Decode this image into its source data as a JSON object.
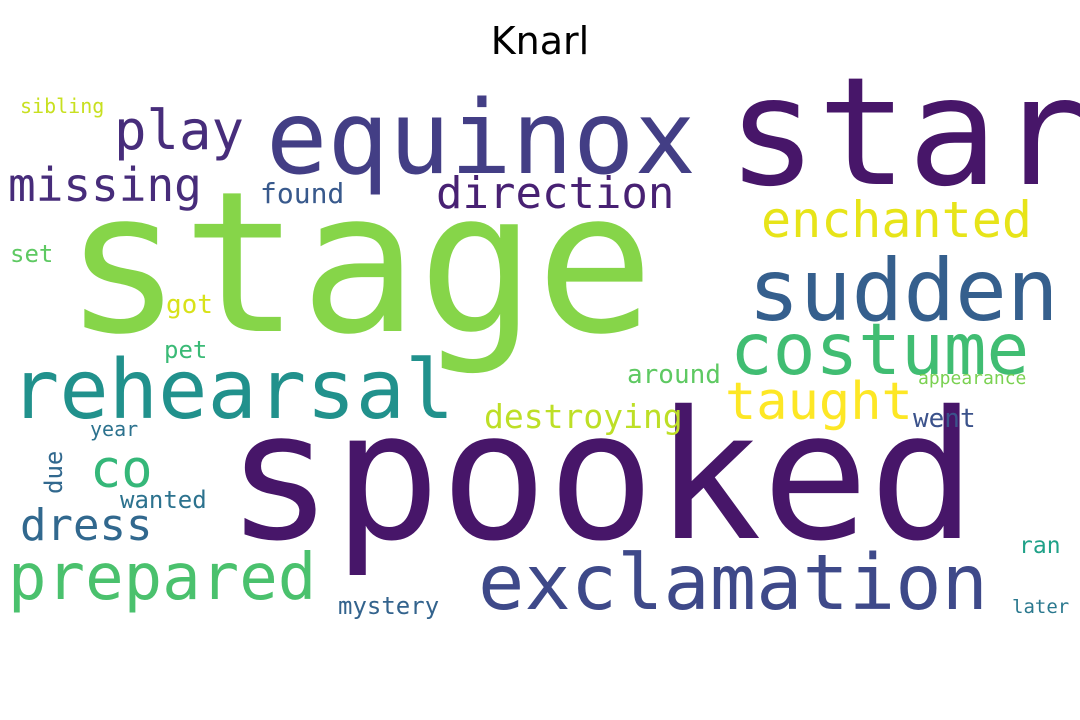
{
  "title": "Knarl",
  "colors": {
    "background": "#ffffff",
    "title": "#000000"
  },
  "words": [
    {
      "text": "stage",
      "color": "#86d549"
    },
    {
      "text": "spooked",
      "color": "#471669"
    },
    {
      "text": "star",
      "color": "#471669"
    },
    {
      "text": "equinox",
      "color": "#433e85"
    },
    {
      "text": "rehearsal",
      "color": "#21918c"
    },
    {
      "text": "exclamation",
      "color": "#3e4989"
    },
    {
      "text": "sudden",
      "color": "#355f8d"
    },
    {
      "text": "costume",
      "color": "#40bd72"
    },
    {
      "text": "prepared",
      "color": "#4ac16d"
    },
    {
      "text": "play",
      "color": "#472d7b"
    },
    {
      "text": "missing",
      "color": "#472c7a"
    },
    {
      "text": "direction",
      "color": "#482173"
    },
    {
      "text": "enchanted",
      "color": "#e7e419"
    },
    {
      "text": "taught",
      "color": "#fde725"
    },
    {
      "text": "co",
      "color": "#35b779"
    },
    {
      "text": "dress",
      "color": "#31688e"
    },
    {
      "text": "destroying",
      "color": "#bddf26"
    },
    {
      "text": "found",
      "color": "#38598c"
    },
    {
      "text": "got",
      "color": "#d8e219"
    },
    {
      "text": "pet",
      "color": "#3aba76"
    },
    {
      "text": "around",
      "color": "#5ec962"
    },
    {
      "text": "set",
      "color": "#5ec962"
    },
    {
      "text": "sibling",
      "color": "#c8e020"
    },
    {
      "text": "year",
      "color": "#2c728e"
    },
    {
      "text": "due",
      "color": "#31688e"
    },
    {
      "text": "wanted",
      "color": "#2c728e"
    },
    {
      "text": "went",
      "color": "#3b528b"
    },
    {
      "text": "appearance",
      "color": "#7ad151"
    },
    {
      "text": "ran",
      "color": "#1fa188"
    },
    {
      "text": "mystery",
      "color": "#33638d"
    },
    {
      "text": "later",
      "color": "#2a788e"
    }
  ]
}
